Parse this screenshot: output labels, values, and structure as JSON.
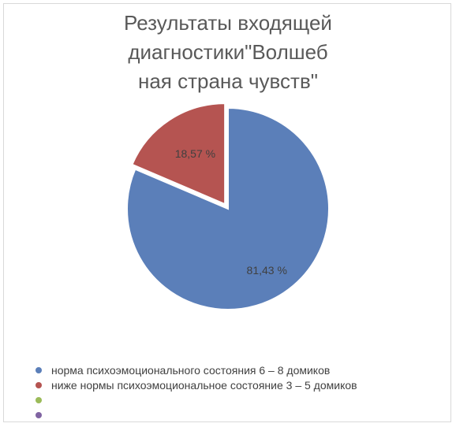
{
  "chart_data": {
    "type": "pie",
    "title_lines": [
      "Результаты входящей",
      "диагностики\"Волшеб",
      "ная страна чувств\""
    ],
    "slices": [
      {
        "name": "норма психоэмоционального состояния 6 – 8 домиков",
        "value": 81.43,
        "label": "81,43 %",
        "color": "#5b7fb9"
      },
      {
        "name": "ниже нормы психоэмоциональное состояние 3 – 5 домиков",
        "value": 18.57,
        "label": "18,57 %",
        "color": "#b55451"
      }
    ],
    "legend": {
      "position": "bottom-left",
      "items": [
        {
          "name": "норма психоэмоционального состояния 6 – 8 домиков",
          "color": "#5b7fb9"
        },
        {
          "name": "ниже нормы психоэмоциональное состояние 3 – 5 домиков",
          "color": "#b55451"
        },
        {
          "name": "",
          "color": "#9bbb59"
        },
        {
          "name": "",
          "color": "#8064a2"
        }
      ]
    },
    "start_angle_deg": 0,
    "exploded_slice": 1
  }
}
